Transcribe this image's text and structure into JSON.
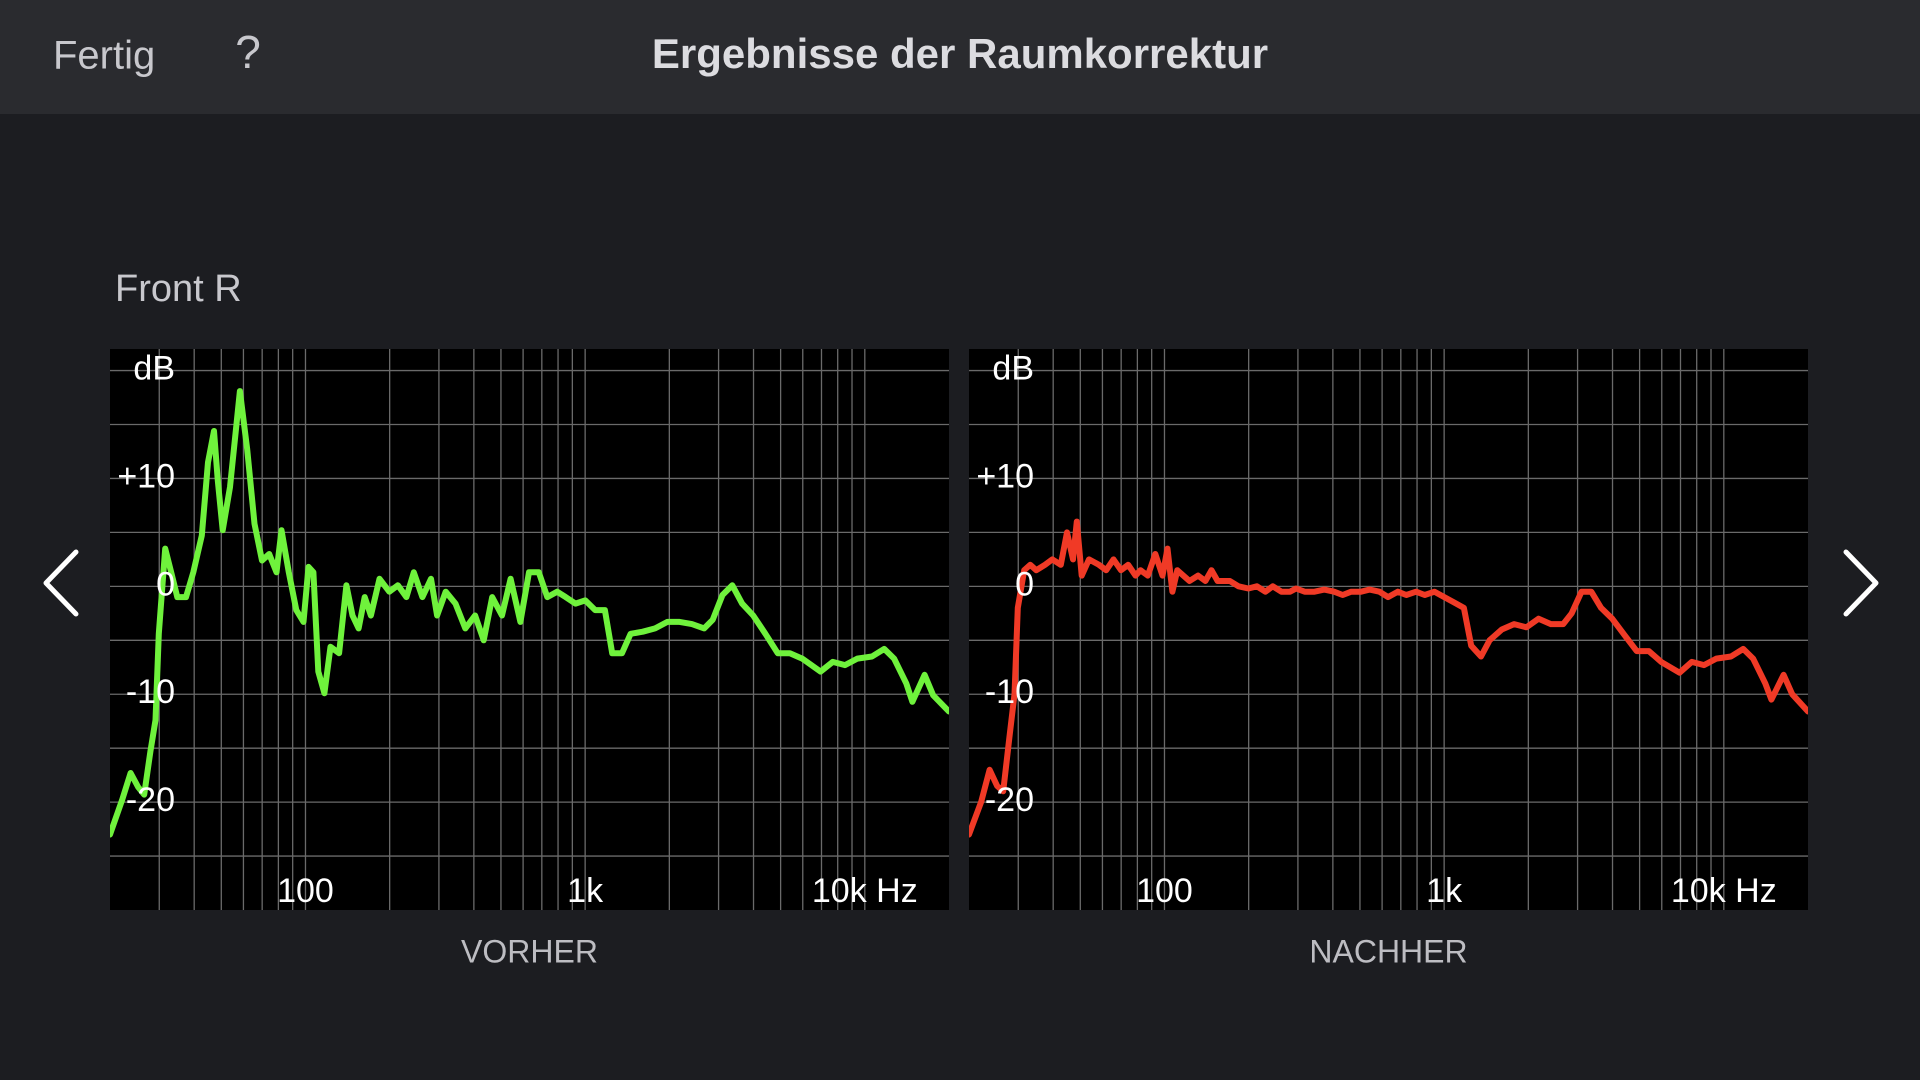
{
  "header": {
    "done": "Fertig",
    "help": "?",
    "title": "Ergebnisse der Raumkorrektur"
  },
  "speaker": "Front R",
  "chart_data": [
    {
      "type": "line",
      "xlabel": "VORHER",
      "color": "#6ff23c",
      "log_x": true,
      "grid": true,
      "xlim": [
        20,
        20000
      ],
      "ylim": [
        -30,
        22
      ],
      "xticks": [
        100,
        {
          "value": 1000,
          "label": "1k"
        },
        {
          "value": 10000,
          "label": "10k Hz"
        }
      ],
      "xminor_ticks": [
        30,
        40,
        50,
        60,
        70,
        80,
        90,
        200,
        300,
        400,
        500,
        600,
        700,
        800,
        900,
        2000,
        3000,
        4000,
        5000,
        6000,
        7000,
        8000,
        9000
      ],
      "yticks": [
        {
          "value": 20,
          "label": "dB"
        },
        {
          "value": 10,
          "label": "+10"
        },
        0,
        -10,
        -20
      ],
      "yminor_ticks": [
        15,
        5,
        -5,
        -15,
        -25
      ],
      "x": [
        20,
        22.1,
        23.7,
        25.2,
        26.5,
        27.9,
        29.1,
        29.9,
        31.5,
        33.1,
        34.8,
        37.4,
        39.7,
        42.6,
        44.8,
        47.1,
        48.6,
        50.6,
        53.7,
        58.3,
        61.9,
        65.7,
        69.9,
        74.2,
        78.8,
        82.1,
        87.2,
        92.7,
        98.4,
        102.5,
        106.7,
        111.1,
        116.9,
        122.9,
        131.9,
        140.1,
        147.3,
        154.9,
        162.9,
        171.4,
        183.9,
        199.4,
        214.1,
        229.6,
        244,
        261.9,
        281,
        295.6,
        317.2,
        343.8,
        372.7,
        404,
        433.6,
        465.4,
        504.4,
        541.4,
        586.8,
        629.7,
        682.6,
        732.4,
        794,
        852,
        923.6,
        1001,
        1086,
        1177,
        1250,
        1355,
        1454,
        1608,
        1779,
        1968,
        2177,
        2408,
        2664,
        2859,
        3099,
        3359,
        3642,
        3988,
        4411,
        4880,
        5398,
        5971,
        6944,
        7681,
        8497,
        9399,
        10609,
        11735,
        12722,
        14072,
        14791,
        16364,
        17564,
        20000
      ],
      "values": [
        -23,
        -19.8,
        -17.3,
        -18.6,
        -19.3,
        -15.3,
        -12.4,
        -4.4,
        3.5,
        1.3,
        -1,
        -1,
        1.3,
        4.7,
        11.5,
        14.4,
        9.8,
        5.2,
        9.2,
        18.1,
        12.7,
        5.8,
        2.4,
        3,
        1.3,
        5.2,
        1.3,
        -2.2,
        -3.3,
        1.8,
        1.3,
        -7.9,
        -9.9,
        -5.6,
        -6.2,
        0.1,
        -2.7,
        -3.9,
        -1,
        -2.7,
        0.7,
        -0.5,
        0.1,
        -1,
        1.3,
        -1,
        0.7,
        -2.7,
        -0.5,
        -1.6,
        -3.9,
        -2.7,
        -5,
        -1,
        -2.7,
        0.7,
        -3.3,
        1.3,
        1.3,
        -1,
        -0.5,
        -1,
        -1.6,
        -1.3,
        -2.2,
        -2.2,
        -6.2,
        -6.2,
        -4.4,
        -4.2,
        -3.9,
        -3.3,
        -3.3,
        -3.5,
        -3.9,
        -3.1,
        -0.8,
        0.1,
        -1.6,
        -2.7,
        -4.4,
        -6.2,
        -6.2,
        -6.7,
        -7.9,
        -7,
        -7.3,
        -6.7,
        -6.5,
        -5.8,
        -6.7,
        -9,
        -10.7,
        -8.2,
        -10.1,
        -11.6
      ]
    },
    {
      "type": "line",
      "xlabel": "NACHHER",
      "color": "#f03a26",
      "log_x": true,
      "grid": true,
      "xlim": [
        20,
        20000
      ],
      "ylim": [
        -30,
        22
      ],
      "xticks": [
        100,
        {
          "value": 1000,
          "label": "1k"
        },
        {
          "value": 10000,
          "label": "10k Hz"
        }
      ],
      "xminor_ticks": [
        30,
        40,
        50,
        60,
        70,
        80,
        90,
        200,
        300,
        400,
        500,
        600,
        700,
        800,
        900,
        2000,
        3000,
        4000,
        5000,
        6000,
        7000,
        8000,
        9000
      ],
      "yticks": [
        {
          "value": 20,
          "label": "dB"
        },
        {
          "value": 10,
          "label": "+10"
        },
        0,
        -10,
        -20
      ],
      "yminor_ticks": [
        15,
        5,
        -5,
        -15,
        -25
      ],
      "x": [
        20,
        22.1,
        23.7,
        25.2,
        26.5,
        27.9,
        29.1,
        29.9,
        31.5,
        33.1,
        34.8,
        37.4,
        39.7,
        42.6,
        44.8,
        47.1,
        48.6,
        50.6,
        53.7,
        58.3,
        61.9,
        65.7,
        69.9,
        74.2,
        78.8,
        82.1,
        87.2,
        92.7,
        98.4,
        102.5,
        106.7,
        111.1,
        116.9,
        122.9,
        131.9,
        140.1,
        147.3,
        154.9,
        162.9,
        171.4,
        183.9,
        199.4,
        214.1,
        229.6,
        244,
        261.9,
        281,
        295.6,
        317.2,
        343.8,
        372.7,
        404,
        433.6,
        465.4,
        504.4,
        541.4,
        586.8,
        629.7,
        682.6,
        732.4,
        794,
        852,
        923.6,
        1001,
        1086,
        1177,
        1250,
        1355,
        1454,
        1608,
        1779,
        1968,
        2177,
        2408,
        2664,
        2859,
        3099,
        3359,
        3642,
        3988,
        4411,
        4880,
        5398,
        5971,
        6944,
        7681,
        8497,
        9399,
        10609,
        11735,
        12722,
        14072,
        14791,
        16364,
        17564,
        20000
      ],
      "values": [
        -23,
        -20,
        -17,
        -18.5,
        -19,
        -14,
        -10,
        -2,
        1.5,
        2,
        1.5,
        2,
        2.5,
        2,
        5,
        2.5,
        6,
        1,
        2.5,
        2,
        1.5,
        2.5,
        1.5,
        2,
        1,
        1.5,
        1,
        3,
        1,
        3.5,
        -0.5,
        1.5,
        1,
        0.5,
        1,
        0.5,
        1.5,
        0.5,
        0.5,
        0.5,
        0,
        -0.2,
        0,
        -0.5,
        0,
        -0.5,
        -0.5,
        -0.2,
        -0.5,
        -0.5,
        -0.3,
        -0.5,
        -0.8,
        -0.5,
        -0.5,
        -0.3,
        -0.5,
        -1,
        -0.5,
        -0.8,
        -0.5,
        -0.8,
        -0.5,
        -1,
        -1.5,
        -2,
        -5.5,
        -6.5,
        -5,
        -4,
        -3.5,
        -3.8,
        -3,
        -3.5,
        -3.5,
        -2.5,
        -0.5,
        -0.5,
        -2,
        -3,
        -4.5,
        -6,
        -6,
        -7,
        -8,
        -7,
        -7.3,
        -6.7,
        -6.5,
        -5.8,
        -6.7,
        -9,
        -10.5,
        -8.2,
        -10,
        -11.6
      ]
    }
  ]
}
